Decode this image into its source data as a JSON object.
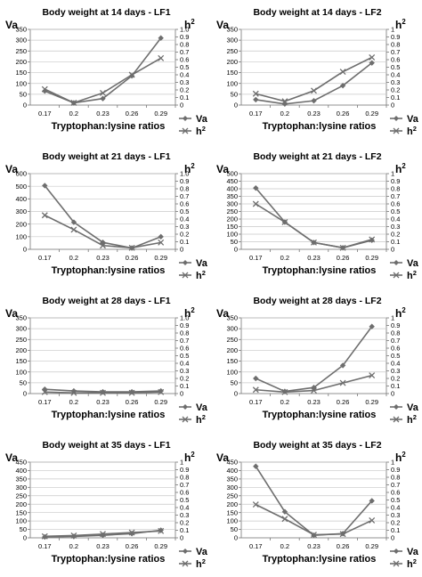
{
  "chart_data": [
    {
      "type": "line",
      "title": "Body weight at 14 days - LF1",
      "xlabel": "Tryptophan:lysine ratios",
      "ylabel": "Va",
      "y2label": "h²",
      "categories": [
        "0.17",
        "0.2",
        "0.23",
        "0.26",
        "0.29"
      ],
      "ylim": [
        0,
        350
      ],
      "y2lim": [
        0,
        1.0
      ],
      "yticks": [
        "0",
        "50",
        "100",
        "150",
        "200",
        "250",
        "300",
        "350"
      ],
      "y2ticks": [
        "0",
        "0.1",
        "0.2",
        "0.3",
        "0.4",
        "0.5",
        "0.6",
        "0.7",
        "0.8",
        "0.9",
        "1.0"
      ],
      "legend_position": "bottom-right",
      "grid": true,
      "series": [
        {
          "name": "Va",
          "axis": "left",
          "marker": "diamond",
          "values": [
            65,
            10,
            30,
            135,
            310
          ]
        },
        {
          "name": "h²",
          "axis": "right",
          "marker": "x",
          "values": [
            0.21,
            0.03,
            0.16,
            0.4,
            0.62
          ]
        }
      ]
    },
    {
      "type": "line",
      "title": "Body weight at 14 days - LF2",
      "xlabel": "Tryptophan:lysine ratios",
      "ylabel": "Va",
      "y2label": "h²",
      "categories": [
        "0.17",
        "0.2",
        "0.23",
        "0.26",
        "0.29"
      ],
      "ylim": [
        0,
        350
      ],
      "y2lim": [
        0,
        1.0
      ],
      "yticks": [
        "0",
        "50",
        "100",
        "150",
        "200",
        "250",
        "300",
        "350"
      ],
      "y2ticks": [
        "0",
        "0.1",
        "0.2",
        "0.3",
        "0.4",
        "0.5",
        "0.6",
        "0.7",
        "0.8",
        "0.9",
        "1"
      ],
      "legend_position": "bottom-right",
      "grid": true,
      "series": [
        {
          "name": "Va",
          "axis": "left",
          "marker": "diamond",
          "values": [
            25,
            5,
            20,
            90,
            195
          ]
        },
        {
          "name": "h²",
          "axis": "right",
          "marker": "x",
          "values": [
            0.15,
            0.05,
            0.19,
            0.44,
            0.63
          ]
        }
      ]
    },
    {
      "type": "line",
      "title": "Body weight at 21 days - LF1",
      "xlabel": "Tryptophan:lysine ratios",
      "ylabel": "Va",
      "y2label": "h²",
      "categories": [
        "0.17",
        "0.2",
        "0.23",
        "0.26",
        "0.29"
      ],
      "ylim": [
        0,
        600
      ],
      "y2lim": [
        0,
        1.0
      ],
      "yticks": [
        "0",
        "100",
        "200",
        "300",
        "400",
        "500",
        "600"
      ],
      "y2ticks": [
        "0",
        "0.1",
        "0.2",
        "0.3",
        "0.4",
        "0.5",
        "0.6",
        "0.7",
        "0.8",
        "0.9",
        "1.0"
      ],
      "legend_position": "bottom-right",
      "grid": true,
      "series": [
        {
          "name": "Va",
          "axis": "left",
          "marker": "diamond",
          "values": [
            505,
            215,
            55,
            10,
            100
          ]
        },
        {
          "name": "h²",
          "axis": "right",
          "marker": "x",
          "values": [
            0.45,
            0.26,
            0.05,
            0.02,
            0.09
          ]
        }
      ]
    },
    {
      "type": "line",
      "title": "Body weight at 21 days - LF2",
      "xlabel": "Tryptophan:lysine ratios",
      "ylabel": "Va",
      "y2label": "h²",
      "categories": [
        "0.17",
        "0.2",
        "0.23",
        "0.26",
        "0.29"
      ],
      "ylim": [
        0,
        500
      ],
      "y2lim": [
        0,
        1
      ],
      "yticks": [
        "0",
        "50",
        "100",
        "150",
        "200",
        "250",
        "300",
        "350",
        "400",
        "450",
        "500"
      ],
      "y2ticks": [
        "0",
        "0.1",
        "0.2",
        "0.3",
        "0.4",
        "0.5",
        "0.6",
        "0.7",
        "0.8",
        "0.9",
        "1"
      ],
      "legend_position": "bottom-right",
      "grid": true,
      "series": [
        {
          "name": "Va",
          "axis": "left",
          "marker": "diamond",
          "values": [
            405,
            180,
            45,
            10,
            60
          ]
        },
        {
          "name": "h²",
          "axis": "right",
          "marker": "x",
          "values": [
            0.6,
            0.36,
            0.09,
            0.02,
            0.13
          ]
        }
      ]
    },
    {
      "type": "line",
      "title": "Body weight at 28 days - LF1",
      "xlabel": "Tryptophan:lysine ratios",
      "ylabel": "Va",
      "y2label": "h²",
      "categories": [
        "0.17",
        "0.2",
        "0.23",
        "0.26",
        "0.29"
      ],
      "ylim": [
        0,
        350
      ],
      "y2lim": [
        0,
        1.0
      ],
      "yticks": [
        "0",
        "50",
        "100",
        "150",
        "200",
        "250",
        "300",
        "350"
      ],
      "y2ticks": [
        "0",
        "0.1",
        "0.2",
        "0.3",
        "0.4",
        "0.5",
        "0.6",
        "0.7",
        "0.8",
        "0.9",
        "1.0"
      ],
      "legend_position": "bottom-right",
      "grid": true,
      "series": [
        {
          "name": "Va",
          "axis": "left",
          "marker": "diamond",
          "values": [
            20,
            12,
            8,
            8,
            12
          ]
        },
        {
          "name": "h²",
          "axis": "right",
          "marker": "x",
          "values": [
            0.02,
            0.01,
            0.01,
            0.01,
            0.02
          ]
        }
      ]
    },
    {
      "type": "line",
      "title": "Body weight at 28 days - LF2",
      "xlabel": "Tryptophan:lysine ratios",
      "ylabel": "Va",
      "y2label": "h²",
      "categories": [
        "0.17",
        "0.2",
        "0.23",
        "0.26",
        "0.29"
      ],
      "ylim": [
        0,
        350
      ],
      "y2lim": [
        0,
        1
      ],
      "yticks": [
        "0",
        "50",
        "100",
        "150",
        "200",
        "250",
        "300",
        "350"
      ],
      "y2ticks": [
        "0",
        "0.1",
        "0.2",
        "0.3",
        "0.4",
        "0.5",
        "0.6",
        "0.7",
        "0.8",
        "0.9",
        "1"
      ],
      "legend_position": "bottom-right",
      "grid": true,
      "series": [
        {
          "name": "Va",
          "axis": "left",
          "marker": "diamond",
          "values": [
            70,
            10,
            28,
            130,
            310
          ]
        },
        {
          "name": "h²",
          "axis": "right",
          "marker": "x",
          "values": [
            0.05,
            0.02,
            0.04,
            0.14,
            0.24
          ]
        }
      ]
    },
    {
      "type": "line",
      "title": "Body weight at 35 days - LF1",
      "xlabel": "Tryptophan:lysine ratios",
      "ylabel": "Va",
      "y2label": "h²",
      "categories": [
        "0.17",
        "0.2",
        "0.23",
        "0.26",
        "0.29"
      ],
      "ylim": [
        0,
        450
      ],
      "y2lim": [
        0,
        1
      ],
      "yticks": [
        "0",
        "50",
        "100",
        "150",
        "200",
        "250",
        "300",
        "350",
        "400",
        "450"
      ],
      "y2ticks": [
        "0",
        "0.1",
        "0.2",
        "0.3",
        "0.4",
        "0.5",
        "0.6",
        "0.7",
        "0.8",
        "0.9",
        "1"
      ],
      "legend_position": "bottom-right",
      "grid": true,
      "series": [
        {
          "name": "Va",
          "axis": "left",
          "marker": "diamond",
          "values": [
            5,
            8,
            15,
            25,
            45
          ]
        },
        {
          "name": "h²",
          "axis": "right",
          "marker": "x",
          "values": [
            0.02,
            0.03,
            0.05,
            0.07,
            0.09
          ]
        }
      ]
    },
    {
      "type": "line",
      "title": "Body weight at 35 days - LF2",
      "xlabel": "Tryptophan:lysine ratios",
      "ylabel": "Va",
      "y2label": "h²",
      "categories": [
        "0.17",
        "0.2",
        "0.23",
        "0.26",
        "0.29"
      ],
      "ylim": [
        0,
        450
      ],
      "y2lim": [
        0,
        1
      ],
      "yticks": [
        "0",
        "50",
        "100",
        "150",
        "200",
        "250",
        "300",
        "350",
        "400",
        "450"
      ],
      "y2ticks": [
        "0",
        "0.1",
        "0.2",
        "0.3",
        "0.4",
        "0.5",
        "0.6",
        "0.7",
        "0.8",
        "0.9",
        "1"
      ],
      "legend_position": "bottom-right",
      "grid": true,
      "series": [
        {
          "name": "Va",
          "axis": "left",
          "marker": "diamond",
          "values": [
            425,
            155,
            15,
            25,
            220
          ]
        },
        {
          "name": "h²",
          "axis": "right",
          "marker": "x",
          "values": [
            0.44,
            0.25,
            0.04,
            0.05,
            0.23
          ]
        }
      ]
    }
  ],
  "colors": {
    "va": "#6e6e6e",
    "h2": "#6e6e6e",
    "grid": "#c8c8c8",
    "axis": "#777777",
    "text": "#000000"
  }
}
